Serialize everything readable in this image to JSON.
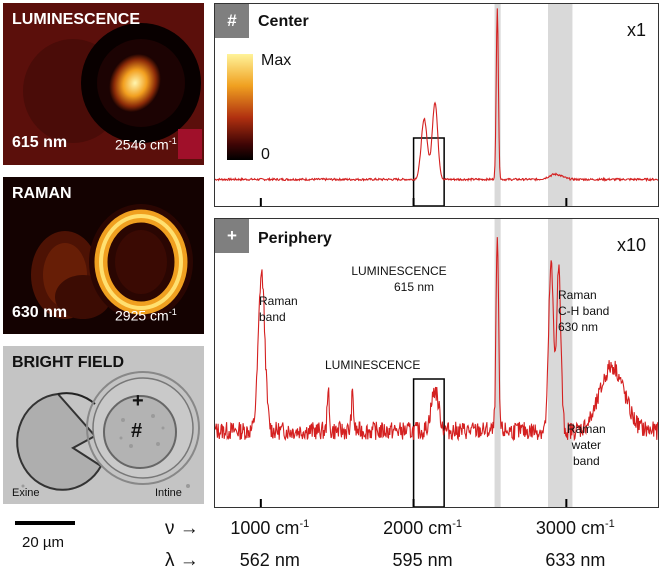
{
  "panels": {
    "luminescence": {
      "title": "LUMINESCENCE",
      "wavelength": "615 nm",
      "wavenumber": "2546 cm",
      "wavenumber_sup": "-1"
    },
    "raman": {
      "title": "RAMAN",
      "wavelength": "630 nm",
      "wavenumber": "2925 cm",
      "wavenumber_sup": "-1"
    },
    "bright_field": {
      "title": "BRIGHT FIELD",
      "plus_marker": "+",
      "hash_marker": "#",
      "left_label": "Exine",
      "right_label": "Intine"
    }
  },
  "scale_bar": {
    "label": "20 µm"
  },
  "center_spectrum": {
    "badge": "#",
    "title": "Center",
    "multiplier": "x1",
    "colorbar": {
      "max_label": "Max",
      "min_label": "0"
    }
  },
  "periphery_spectrum": {
    "badge": "+",
    "title": "Periphery",
    "multiplier": "x10",
    "annotations": {
      "raman_band": [
        "Raman",
        "band"
      ],
      "luminescence_615": [
        "LUMINESCENCE",
        "615 nm"
      ],
      "raman_ch": [
        "Raman",
        "C-H band",
        "630 nm"
      ],
      "luminescence_box": "LUMINESCENCE",
      "raman_water": [
        "Raman",
        "water",
        "band"
      ]
    }
  },
  "axis": {
    "nu_symbol": "ν →",
    "lambda_symbol": "λ →",
    "nu_labels": [
      {
        "value": 1000,
        "text": "1000 cm",
        "sup": "-1"
      },
      {
        "value": 2000,
        "text": "2000 cm",
        "sup": "-1"
      },
      {
        "value": 3000,
        "text": "3000 cm",
        "sup": "-1"
      }
    ],
    "lambda_labels": [
      {
        "value": 1000,
        "text": "562 nm"
      },
      {
        "value": 2000,
        "text": "595 nm"
      },
      {
        "value": 3000,
        "text": "633 nm"
      }
    ],
    "range_cm": [
      700,
      3600
    ]
  },
  "colors": {
    "spectrum_line": "#d42020",
    "highlight_band": "#d9d9d9",
    "badge": "#7f7f7f"
  },
  "chart_data": [
    {
      "type": "line",
      "title": "Center",
      "x_unit": "cm-1",
      "xlim": [
        700,
        3600
      ],
      "highlight_bands": [
        [
          2530,
          2570
        ],
        [
          2880,
          3040
        ]
      ],
      "box": [
        2000,
        2200
      ],
      "ticks": [
        1000,
        2000,
        3000
      ],
      "peaks": [
        {
          "x": 2070,
          "height": 0.35,
          "width": 28
        },
        {
          "x": 2140,
          "height": 0.45,
          "width": 25
        },
        {
          "x": 2548,
          "height": 1.0,
          "width": 10
        },
        {
          "x": 2930,
          "height": 0.03,
          "width": 60
        }
      ],
      "baseline": 0.05
    },
    {
      "type": "line",
      "title": "Periphery",
      "x_unit": "cm-1",
      "xlim": [
        700,
        3600
      ],
      "highlight_bands": [
        [
          2530,
          2570
        ],
        [
          2880,
          3040
        ]
      ],
      "box": [
        2000,
        2200
      ],
      "ticks": [
        1000,
        2000,
        3000
      ],
      "peaks": [
        {
          "x": 1005,
          "height": 0.78,
          "width": 30
        },
        {
          "x": 1440,
          "height": 0.22,
          "width": 8
        },
        {
          "x": 1600,
          "height": 0.18,
          "width": 10
        },
        {
          "x": 2140,
          "height": 0.2,
          "width": 35
        },
        {
          "x": 2548,
          "height": 0.95,
          "width": 12
        },
        {
          "x": 2900,
          "height": 0.82,
          "width": 22
        },
        {
          "x": 2950,
          "height": 0.8,
          "width": 20
        },
        {
          "x": 3300,
          "height": 0.32,
          "width": 110
        }
      ],
      "baseline": 0.1
    }
  ]
}
